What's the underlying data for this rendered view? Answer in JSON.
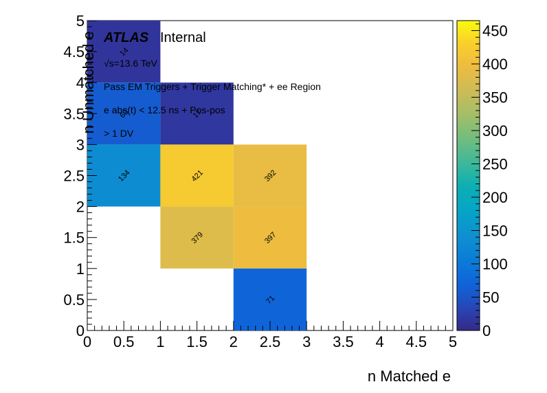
{
  "chart_data": {
    "type": "heatmap",
    "xlabel": "n Matched e",
    "ylabel": "n Unmatched e",
    "xlim": [
      0,
      5
    ],
    "ylim": [
      0,
      5
    ],
    "x_ticks": [
      "0",
      "0.5",
      "1",
      "1.5",
      "2",
      "2.5",
      "3",
      "3.5",
      "4",
      "4.5",
      "5"
    ],
    "y_ticks": [
      "0",
      "0.5",
      "1",
      "1.5",
      "2",
      "2.5",
      "3",
      "3.5",
      "4",
      "4.5",
      "5"
    ],
    "colorbar": {
      "range": [
        0,
        465
      ],
      "ticks": [
        "0",
        "50",
        "100",
        "150",
        "200",
        "250",
        "300",
        "350",
        "400",
        "450"
      ],
      "palette": "kBird"
    },
    "cells": [
      {
        "x0": 0,
        "x1": 1,
        "y0": 4,
        "y1": 5,
        "value": 14,
        "label": "14"
      },
      {
        "x0": 0,
        "x1": 1,
        "y0": 3,
        "y1": 4,
        "value": 60,
        "label": "60"
      },
      {
        "x0": 1,
        "x1": 2,
        "y0": 3,
        "y1": 4,
        "value": 17,
        "label": "17"
      },
      {
        "x0": 0,
        "x1": 1,
        "y0": 2,
        "y1": 3,
        "value": 134,
        "label": "134"
      },
      {
        "x0": 1,
        "x1": 2,
        "y0": 2,
        "y1": 3,
        "value": 421,
        "label": "421"
      },
      {
        "x0": 2,
        "x1": 3,
        "y0": 2,
        "y1": 3,
        "value": 392,
        "label": "392"
      },
      {
        "x0": 1,
        "x1": 2,
        "y0": 1,
        "y1": 2,
        "value": 379,
        "label": "379"
      },
      {
        "x0": 2,
        "x1": 3,
        "y0": 1,
        "y1": 2,
        "value": 397,
        "label": "397"
      },
      {
        "x0": 2,
        "x1": 3,
        "y0": 0,
        "y1": 1,
        "value": 71,
        "label": "71"
      }
    ],
    "annotations": {
      "experiment": "ATLAS",
      "status": "Internal",
      "energy": "√s=13.6 TeV",
      "selection_1": "Pass EM Triggers + Trigger Matching* + ee Region",
      "selection_2": "e abs(t) < 12.5 ns + Pos-pos",
      "selection_3": "> 1 DV"
    },
    "grid": false
  }
}
